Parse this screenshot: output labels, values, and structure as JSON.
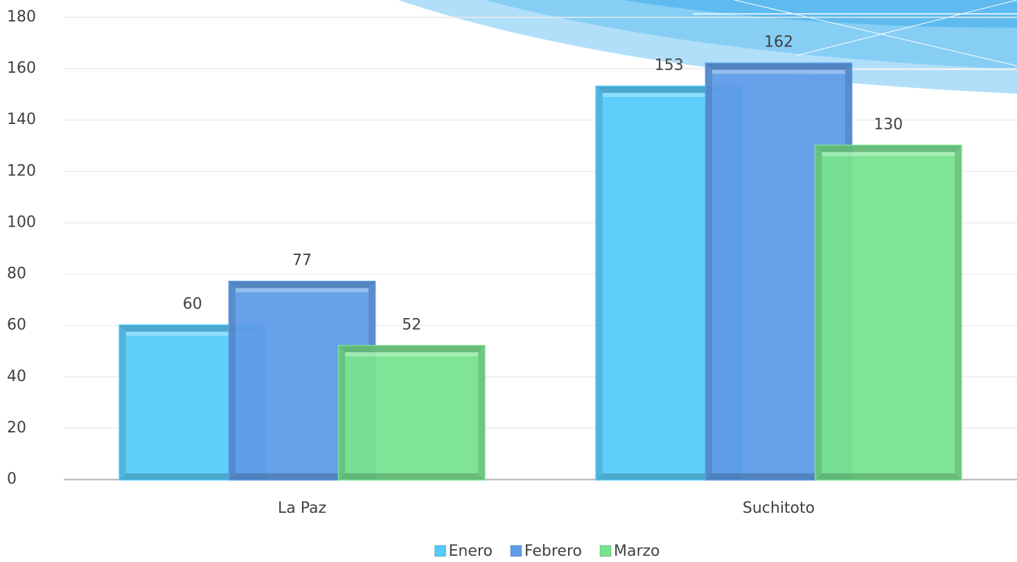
{
  "chart_data": {
    "type": "bar",
    "categories": [
      "La Paz",
      "Suchitoto"
    ],
    "series": [
      {
        "name": "Enero",
        "color": "#55cbfb",
        "values": [
          60,
          153
        ]
      },
      {
        "name": "Febrero",
        "color": "#5f9ce8",
        "values": [
          77,
          162
        ]
      },
      {
        "name": "Marzo",
        "color": "#78e38f",
        "values": [
          52,
          130
        ]
      }
    ],
    "ylim": [
      0,
      180
    ],
    "yticks": [
      0,
      20,
      40,
      60,
      80,
      100,
      120,
      140,
      160,
      180
    ],
    "grid": true,
    "legend": "bottom"
  }
}
